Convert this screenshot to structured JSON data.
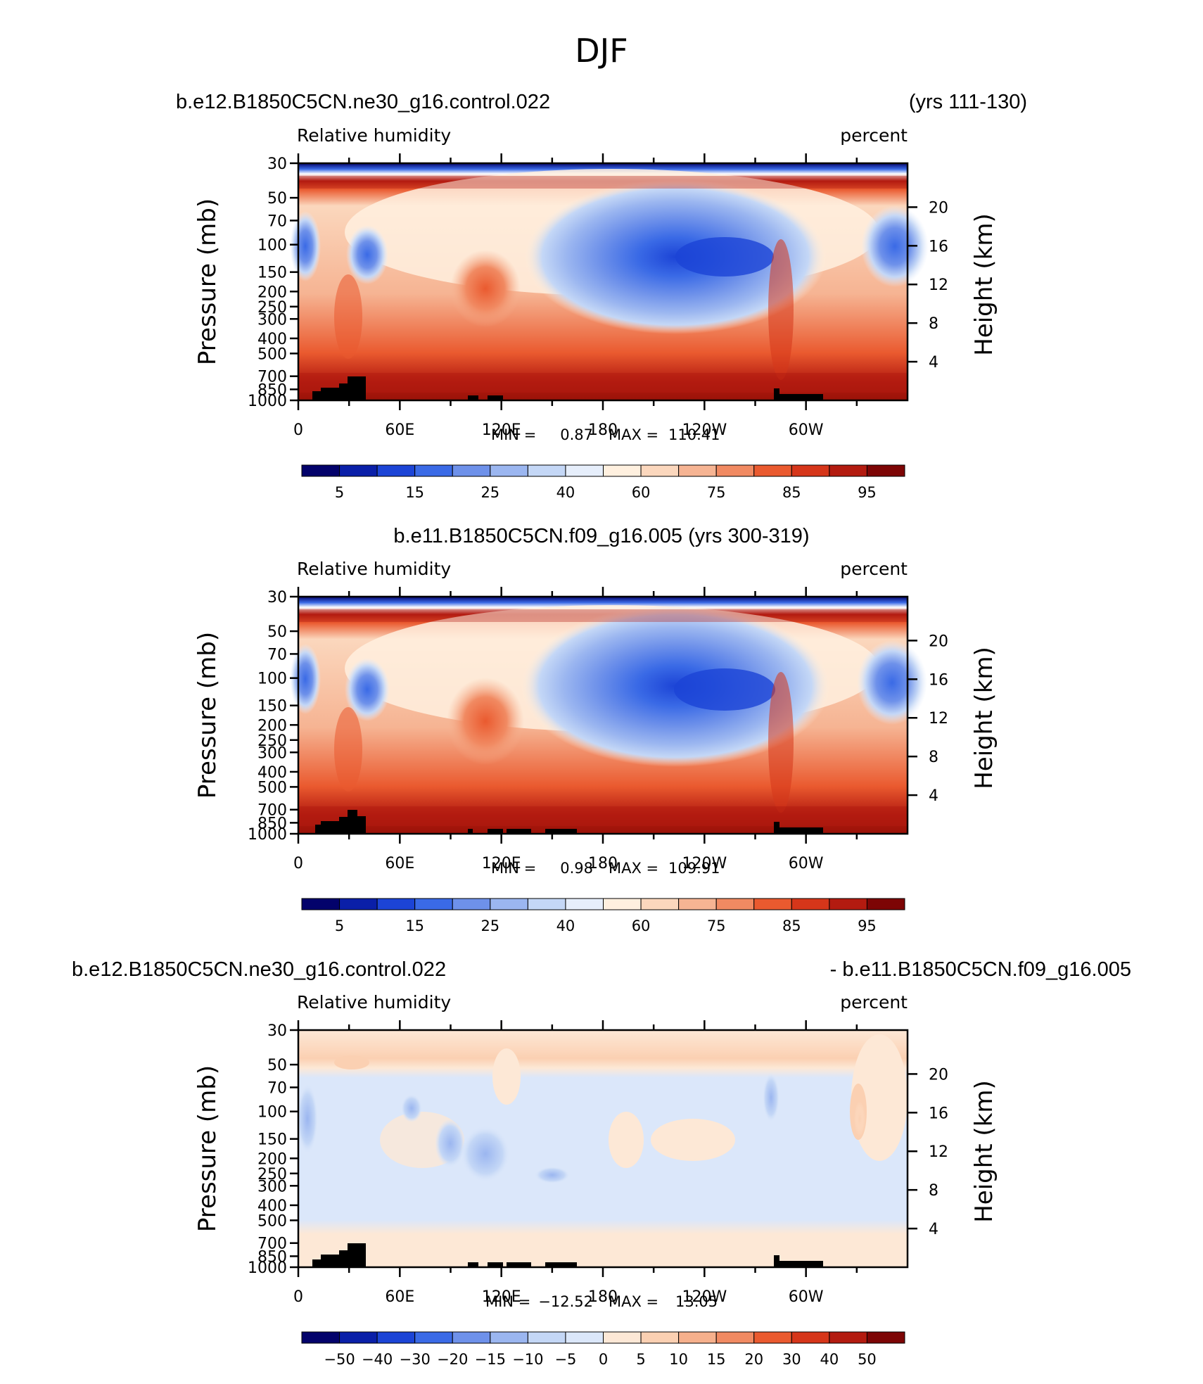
{
  "figure": {
    "title": "DJF"
  },
  "colormaps": {
    "rh": [
      "#03026b",
      "#0a1fa8",
      "#1c44d6",
      "#3a6ae6",
      "#6e91ea",
      "#9bb6f0",
      "#c4d7f6",
      "#e6eefb",
      "#fff0df",
      "#fbd7bd",
      "#f6b493",
      "#f18a62",
      "#ea5a2f",
      "#d6361a",
      "#b31b10",
      "#7d0505"
    ],
    "diff": [
      "#03026b",
      "#0a1fa8",
      "#1c44d6",
      "#3a6ae6",
      "#6e91ea",
      "#9bb6f0",
      "#c4d7f6",
      "#dbe7fa",
      "#fde8d6",
      "#fbd0b2",
      "#f6b08c",
      "#f18a62",
      "#ea5a2f",
      "#d6361a",
      "#b31b10",
      "#7d0505"
    ]
  },
  "chart_data": [
    {
      "id": "panel1",
      "type": "contour",
      "title_left": "b.e12.B1850C5CN.ne30_g16.control.022",
      "title_right": "(yrs 111-130)",
      "variable": "Relative humidity",
      "units": "percent",
      "ylabel": "Pressure (mb)",
      "ylabel_right": "Height (km)",
      "x_ticks": [
        "0",
        "60E",
        "120E",
        "180",
        "120W",
        "60W"
      ],
      "y_ticks": [
        "30",
        "50",
        "70",
        "100",
        "150",
        "200",
        "250",
        "300",
        "400",
        "500",
        "700",
        "850",
        "1000"
      ],
      "height_ticks": [
        "20",
        "16",
        "12",
        "8",
        "4"
      ],
      "min_label": "MIN =",
      "min_value": "0.87",
      "max_label": "MAX =",
      "max_value": "110.41",
      "colorbar_labels": [
        "5",
        "15",
        "25",
        "40",
        "60",
        "75",
        "85",
        "95"
      ],
      "colormap": "rh"
    },
    {
      "id": "panel2",
      "type": "contour",
      "title_center": "b.e11.B1850C5CN.f09_g16.005 (yrs 300-319)",
      "variable": "Relative humidity",
      "units": "percent",
      "ylabel": "Pressure (mb)",
      "ylabel_right": "Height (km)",
      "x_ticks": [
        "0",
        "60E",
        "120E",
        "180",
        "120W",
        "60W"
      ],
      "y_ticks": [
        "30",
        "50",
        "70",
        "100",
        "150",
        "200",
        "250",
        "300",
        "400",
        "500",
        "700",
        "850",
        "1000"
      ],
      "height_ticks": [
        "20",
        "16",
        "12",
        "8",
        "4"
      ],
      "min_label": "MIN =",
      "min_value": "0.98",
      "max_label": "MAX =",
      "max_value": "109.91",
      "colorbar_labels": [
        "5",
        "15",
        "25",
        "40",
        "60",
        "75",
        "85",
        "95"
      ],
      "colormap": "rh"
    },
    {
      "id": "panel3",
      "type": "contour",
      "title_left": "b.e12.B1850C5CN.ne30_g16.control.022",
      "title_right": "- b.e11.B1850C5CN.f09_g16.005",
      "variable": "Relative humidity",
      "units": "percent",
      "ylabel": "Pressure (mb)",
      "ylabel_right": "Height (km)",
      "x_ticks": [
        "0",
        "60E",
        "120E",
        "180",
        "120W",
        "60W"
      ],
      "y_ticks": [
        "30",
        "50",
        "70",
        "100",
        "150",
        "200",
        "250",
        "300",
        "400",
        "500",
        "700",
        "850",
        "1000"
      ],
      "height_ticks": [
        "20",
        "16",
        "12",
        "8",
        "4"
      ],
      "min_label": "MIN =",
      "min_value": "−12.52",
      "max_label": "MAX =",
      "max_value": "13.05",
      "colorbar_labels": [
        "−50",
        "−40",
        "−30",
        "−20",
        "−15",
        "−10",
        "−5",
        "0",
        "5",
        "10",
        "15",
        "20",
        "30",
        "40",
        "50"
      ],
      "colormap": "diff"
    }
  ]
}
